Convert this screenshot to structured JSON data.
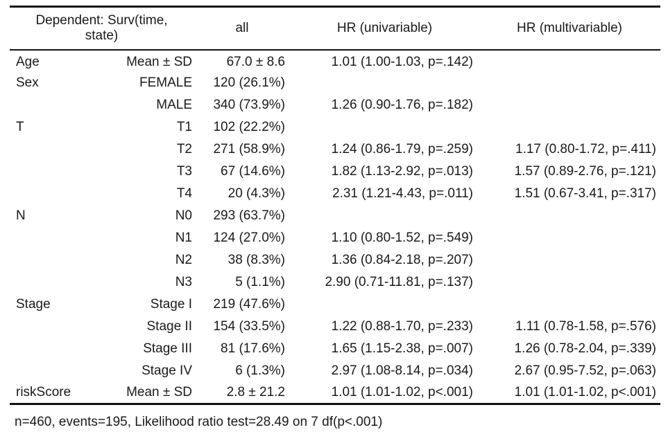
{
  "table": {
    "header": {
      "dependent_line1": "Dependent: Surv(time,",
      "dependent_line2": "state)",
      "all": "all",
      "uni": "HR (univariable)",
      "multi": "HR (multivariable)"
    },
    "rows": [
      {
        "var": "Age",
        "level": "Mean ± SD",
        "all": "67.0 ± 8.6",
        "uni": "1.01 (1.00-1.03, p=.142)",
        "multi": ""
      },
      {
        "var": "Sex",
        "level": "FEMALE",
        "all": "120 (26.1%)",
        "uni": "",
        "multi": ""
      },
      {
        "var": "",
        "level": "MALE",
        "all": "340 (73.9%)",
        "uni": "1.26 (0.90-1.76, p=.182)",
        "multi": ""
      },
      {
        "var": "T",
        "level": "T1",
        "all": "102 (22.2%)",
        "uni": "",
        "multi": ""
      },
      {
        "var": "",
        "level": "T2",
        "all": "271 (58.9%)",
        "uni": "1.24 (0.86-1.79, p=.259)",
        "multi": "1.17 (0.80-1.72, p=.411)"
      },
      {
        "var": "",
        "level": "T3",
        "all": "67 (14.6%)",
        "uni": "1.82 (1.13-2.92, p=.013)",
        "multi": "1.57 (0.89-2.76, p=.121)"
      },
      {
        "var": "",
        "level": "T4",
        "all": "20 (4.3%)",
        "uni": "2.31 (1.21-4.43, p=.011)",
        "multi": "1.51 (0.67-3.41, p=.317)"
      },
      {
        "var": "N",
        "level": "N0",
        "all": "293 (63.7%)",
        "uni": "",
        "multi": ""
      },
      {
        "var": "",
        "level": "N1",
        "all": "124 (27.0%)",
        "uni": "1.10 (0.80-1.52, p=.549)",
        "multi": ""
      },
      {
        "var": "",
        "level": "N2",
        "all": "38 (8.3%)",
        "uni": "1.36 (0.84-2.18, p=.207)",
        "multi": ""
      },
      {
        "var": "",
        "level": "N3",
        "all": "5 (1.1%)",
        "uni": "2.90 (0.71-11.81, p=.137)",
        "multi": ""
      },
      {
        "var": "Stage",
        "level": "Stage I",
        "all": "219 (47.6%)",
        "uni": "",
        "multi": ""
      },
      {
        "var": "",
        "level": "Stage II",
        "all": "154 (33.5%)",
        "uni": "1.22 (0.88-1.70, p=.233)",
        "multi": "1.11 (0.78-1.58, p=.576)"
      },
      {
        "var": "",
        "level": "Stage III",
        "all": "81 (17.6%)",
        "uni": "1.65 (1.15-2.38, p=.007)",
        "multi": "1.26 (0.78-2.04, p=.339)"
      },
      {
        "var": "",
        "level": "Stage IV",
        "all": "6 (1.3%)",
        "uni": "2.97 (1.08-8.14, p=.034)",
        "multi": "2.67 (0.95-7.52, p=.063)"
      },
      {
        "var": "riskScore",
        "level": "Mean ± SD",
        "all": "2.8 ± 21.2",
        "uni": "1.01 (1.01-1.02, p<.001)",
        "multi": "1.01 (1.01-1.02, p<.001)"
      }
    ]
  },
  "footnote": "n=460, events=195, Likelihood ratio test=28.49 on 7 df(p<.001)"
}
